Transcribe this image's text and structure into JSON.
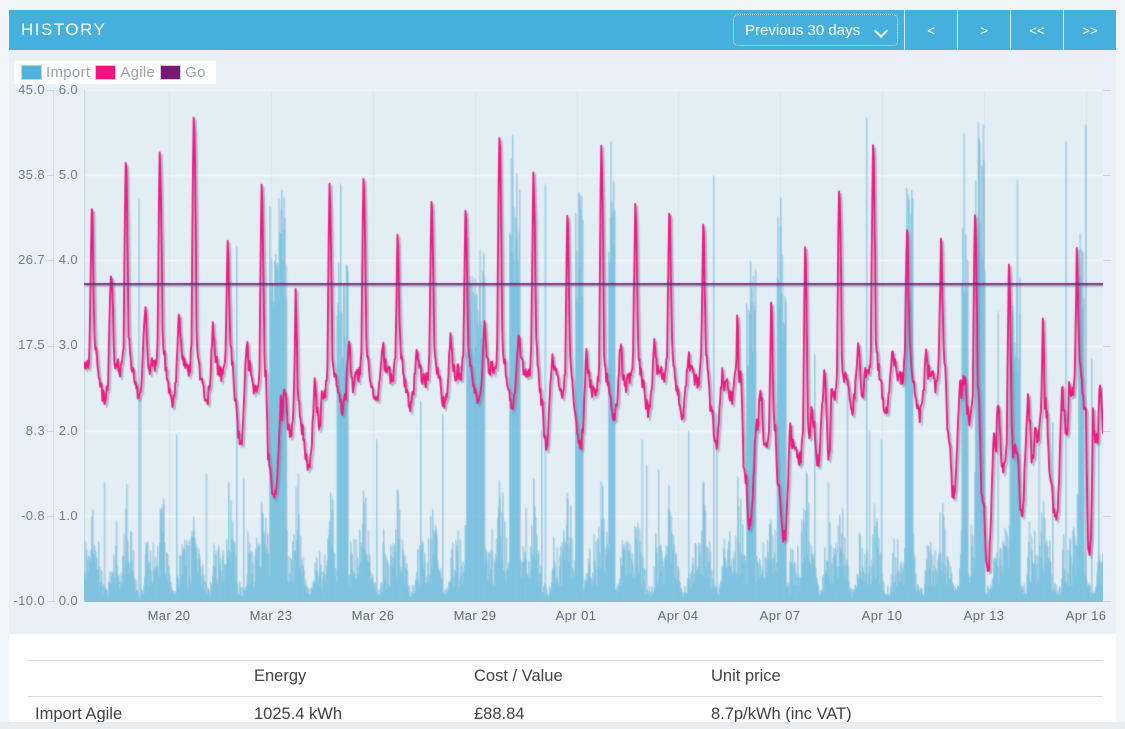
{
  "header": {
    "title": "HISTORY",
    "range_select": {
      "value": "Previous 30 days",
      "options": [
        "Previous 30 days"
      ]
    },
    "nav": [
      {
        "name": "previous",
        "label": "<"
      },
      {
        "name": "next",
        "label": ">"
      },
      {
        "name": "first",
        "label": "<<"
      },
      {
        "name": "last",
        "label": ">>"
      }
    ]
  },
  "legend": [
    {
      "label": "Import",
      "color": "#4fb3dc"
    },
    {
      "label": "Agile",
      "color": "#f2137e"
    },
    {
      "label": "Go",
      "color": "#7a1777"
    }
  ],
  "chart_data": {
    "type": "mixed",
    "title": "",
    "legend_position": "top-left",
    "grid": true,
    "x_axis": {
      "span_days": 30,
      "tick_days": [
        2.5,
        5.5,
        8.5,
        11.5,
        14.5,
        17.5,
        20.5,
        23.5,
        26.5,
        29.5
      ],
      "tick_labels": [
        "Mar 20",
        "Mar 23",
        "Mar 26",
        "Mar 29",
        "Apr 01",
        "Apr 04",
        "Apr 07",
        "Apr 10",
        "Apr 13",
        "Apr 16"
      ]
    },
    "price_axis": {
      "side": "outer-left",
      "unit": "p/kWh",
      "min": -10,
      "max": 45,
      "tick_labels": [
        "45.0",
        "35.8",
        "26.7",
        "17.5",
        "8.3",
        "-0.8",
        "-10.0"
      ]
    },
    "energy_axis": {
      "side": "inner-left",
      "unit": "kWh",
      "min": 0,
      "max": 6,
      "tick_labels": [
        "6.0",
        "5.0",
        "4.0",
        "3.0",
        "2.0",
        "1.0",
        "0.0"
      ]
    },
    "series": [
      {
        "name": "Import",
        "type": "bar",
        "axis": "energy",
        "color": "#69c0e3",
        "halfhour_profile_kwh": [
          0.5,
          0.45,
          0.4,
          0.45,
          0.5,
          0.55,
          0.5,
          0.55,
          0.6,
          0.7,
          0.9,
          1.0,
          0.9,
          0.8,
          0.7,
          0.75,
          0.65,
          0.6,
          0.55,
          0.5,
          0.45,
          0.4,
          0.35,
          0.3,
          0.28,
          0.22,
          0.18,
          0.15,
          0.13,
          0.12,
          0.12,
          0.13,
          0.12,
          0.13,
          0.15,
          0.18,
          0.22,
          0.3,
          0.45,
          0.55,
          0.5,
          0.45,
          0.42,
          0.4,
          0.45,
          0.5,
          0.48,
          0.45
        ],
        "day_activity_scale": [
          1,
          1,
          1,
          1,
          1,
          1.1,
          0.9,
          1,
          1,
          1,
          1,
          1.05,
          1.1,
          1,
          1.1,
          1,
          0.95,
          1,
          1,
          1.05,
          1.15,
          1.2,
          1,
          0.95,
          1,
          1,
          1.1,
          1.15,
          1.05,
          1.1
        ],
        "spikes_day_kwh": [
          [
            0.58,
            1.4
          ],
          [
            0.93,
            0.95
          ],
          [
            1.6,
            4.72
          ],
          [
            1.64,
            2.4
          ],
          [
            2.33,
            1.2
          ],
          [
            2.7,
            1.95
          ],
          [
            3.58,
            1.5
          ],
          [
            4.47,
            4.17
          ],
          [
            4.68,
            1.45
          ],
          [
            6.3,
            1.5
          ],
          [
            7.55,
            4.9
          ],
          [
            8.6,
            1.9
          ],
          [
            9.2,
            1.3
          ],
          [
            9.9,
            2.35
          ],
          [
            10.55,
            2.2
          ],
          [
            11.5,
            1.6
          ],
          [
            12.6,
            5.47
          ],
          [
            13.0,
            1.1
          ],
          [
            13.45,
            2.0
          ],
          [
            13.57,
            4.9
          ],
          [
            14.55,
            4.8
          ],
          [
            15.5,
            5.4
          ],
          [
            16.42,
            1.9
          ],
          [
            16.55,
            1.6
          ],
          [
            16.9,
            1.55
          ],
          [
            17.8,
            2.0
          ],
          [
            18.52,
            5.0
          ],
          [
            18.6,
            2.2
          ],
          [
            19.6,
            4.0
          ],
          [
            20.5,
            4.75
          ],
          [
            21.5,
            2.9
          ],
          [
            21.9,
            1.4
          ],
          [
            22.45,
            2.6
          ],
          [
            23.02,
            5.68
          ],
          [
            23.1,
            2.0
          ],
          [
            23.45,
            1.9
          ],
          [
            24.25,
            4.78
          ],
          [
            25.9,
            5.5
          ],
          [
            26.35,
            5.25
          ],
          [
            26.9,
            3.4
          ],
          [
            27.45,
            4.95
          ],
          [
            28.1,
            1.85
          ],
          [
            28.5,
            2.1
          ],
          [
            28.9,
            5.4
          ],
          [
            29.47,
            5.6
          ],
          [
            29.65,
            2.85
          ],
          [
            29.85,
            2.0
          ]
        ],
        "blocks_day_range_kwh": [
          [
            5.45,
            5.95,
            4.3
          ],
          [
            7.42,
            7.75,
            3.5
          ],
          [
            11.25,
            11.78,
            3.7
          ],
          [
            12.52,
            12.82,
            4.5
          ],
          [
            14.45,
            14.68,
            4.3
          ],
          [
            15.42,
            15.62,
            4.3
          ],
          [
            19.5,
            19.77,
            3.5
          ],
          [
            20.38,
            20.65,
            3.9
          ],
          [
            24.15,
            24.38,
            4.2
          ],
          [
            25.82,
            26.02,
            4.0
          ],
          [
            26.22,
            26.5,
            4.9
          ],
          [
            27.25,
            27.55,
            3.3
          ],
          [
            29.27,
            29.42,
            3.9
          ]
        ]
      },
      {
        "name": "Agile",
        "type": "line",
        "axis": "price",
        "color": "#ee1b80",
        "jitter_pence": 1.6,
        "param_names": [
          "base",
          "peak",
          "night",
          "dip",
          "am_peak"
        ],
        "daily_profile": [
          [
            0.0,
            0,
            0
          ],
          [
            0.06,
            0,
            -0.8
          ],
          [
            0.12,
            0,
            -0.3
          ],
          [
            0.165,
            0,
            1.6
          ],
          [
            0.205,
            1,
            -6
          ],
          [
            0.23,
            1,
            0
          ],
          [
            0.25,
            1,
            -1.5
          ],
          [
            0.285,
            1,
            -9
          ],
          [
            0.315,
            0,
            2.6
          ],
          [
            0.36,
            0,
            1.0
          ],
          [
            0.42,
            2,
            1.5
          ],
          [
            0.5,
            2,
            0
          ],
          [
            0.555,
            3,
            0.5
          ],
          [
            0.6,
            3,
            0
          ],
          [
            0.65,
            3,
            0.5
          ],
          [
            0.71,
            2,
            0.4
          ],
          [
            0.765,
            4,
            -2
          ],
          [
            0.8,
            4,
            0
          ],
          [
            0.845,
            4,
            -2.5
          ],
          [
            0.89,
            0,
            0.4
          ],
          [
            0.95,
            0,
            -0.5
          ]
        ],
        "days_params_pence": [
          [
            15.5,
            32.6,
            13,
            11.5,
            25
          ],
          [
            15.5,
            37.2,
            13.5,
            12,
            22
          ],
          [
            16,
            38.1,
            13,
            11,
            21
          ],
          [
            15.5,
            42.1,
            13,
            11.5,
            20
          ],
          [
            15,
            29.4,
            11,
            7,
            18
          ],
          [
            13,
            34.5,
            4,
            0.8,
            12
          ],
          [
            9,
            23,
            7,
            4,
            14
          ],
          [
            13,
            34.5,
            12,
            10.5,
            18
          ],
          [
            15,
            36,
            13,
            11.5,
            18
          ],
          [
            14.5,
            29.4,
            12.5,
            11,
            18
          ],
          [
            14.5,
            33.9,
            13,
            11,
            19
          ],
          [
            15,
            32.4,
            13,
            11.5,
            20
          ],
          [
            15.5,
            40,
            13,
            11,
            19
          ],
          [
            15,
            35.8,
            11,
            7,
            17
          ],
          [
            13,
            31.3,
            9.5,
            6.5,
            17
          ],
          [
            13.5,
            38.6,
            12,
            10,
            18
          ],
          [
            14.5,
            33.3,
            12.5,
            10.5,
            18
          ],
          [
            14.5,
            32.4,
            12,
            10,
            17
          ],
          [
            14,
            30.5,
            10,
            6.5,
            15
          ],
          [
            12.5,
            21.4,
            3,
            -2,
            10
          ],
          [
            7,
            22.1,
            1,
            -3.1,
            9
          ],
          [
            6,
            27.6,
            9,
            5,
            15
          ],
          [
            12.5,
            34.9,
            13,
            10.5,
            18
          ],
          [
            15,
            38.8,
            12.5,
            10,
            17.5
          ],
          [
            14.5,
            30.5,
            12,
            10,
            17
          ],
          [
            14,
            29.6,
            7,
            1.5,
            14
          ],
          [
            10.5,
            31.4,
            0,
            -6.7,
            8
          ],
          [
            5,
            26.5,
            5,
            -0.5,
            12
          ],
          [
            8.5,
            20.3,
            2,
            -1,
            13
          ],
          [
            13,
            27.8,
            10,
            -4.5,
            9
          ]
        ],
        "end_value_pence": 8
      },
      {
        "name": "Go",
        "type": "line",
        "axis": "price",
        "color": "#72217f",
        "constant_pence": 24.1
      }
    ]
  },
  "table": {
    "headers": [
      "",
      "Energy",
      "Cost / Value",
      "Unit price"
    ],
    "rows": [
      {
        "name": "Import Agile",
        "energy": "1025.4 kWh",
        "cost": "£88.84",
        "unit_price": "8.7p/kWh (inc VAT)"
      }
    ]
  }
}
